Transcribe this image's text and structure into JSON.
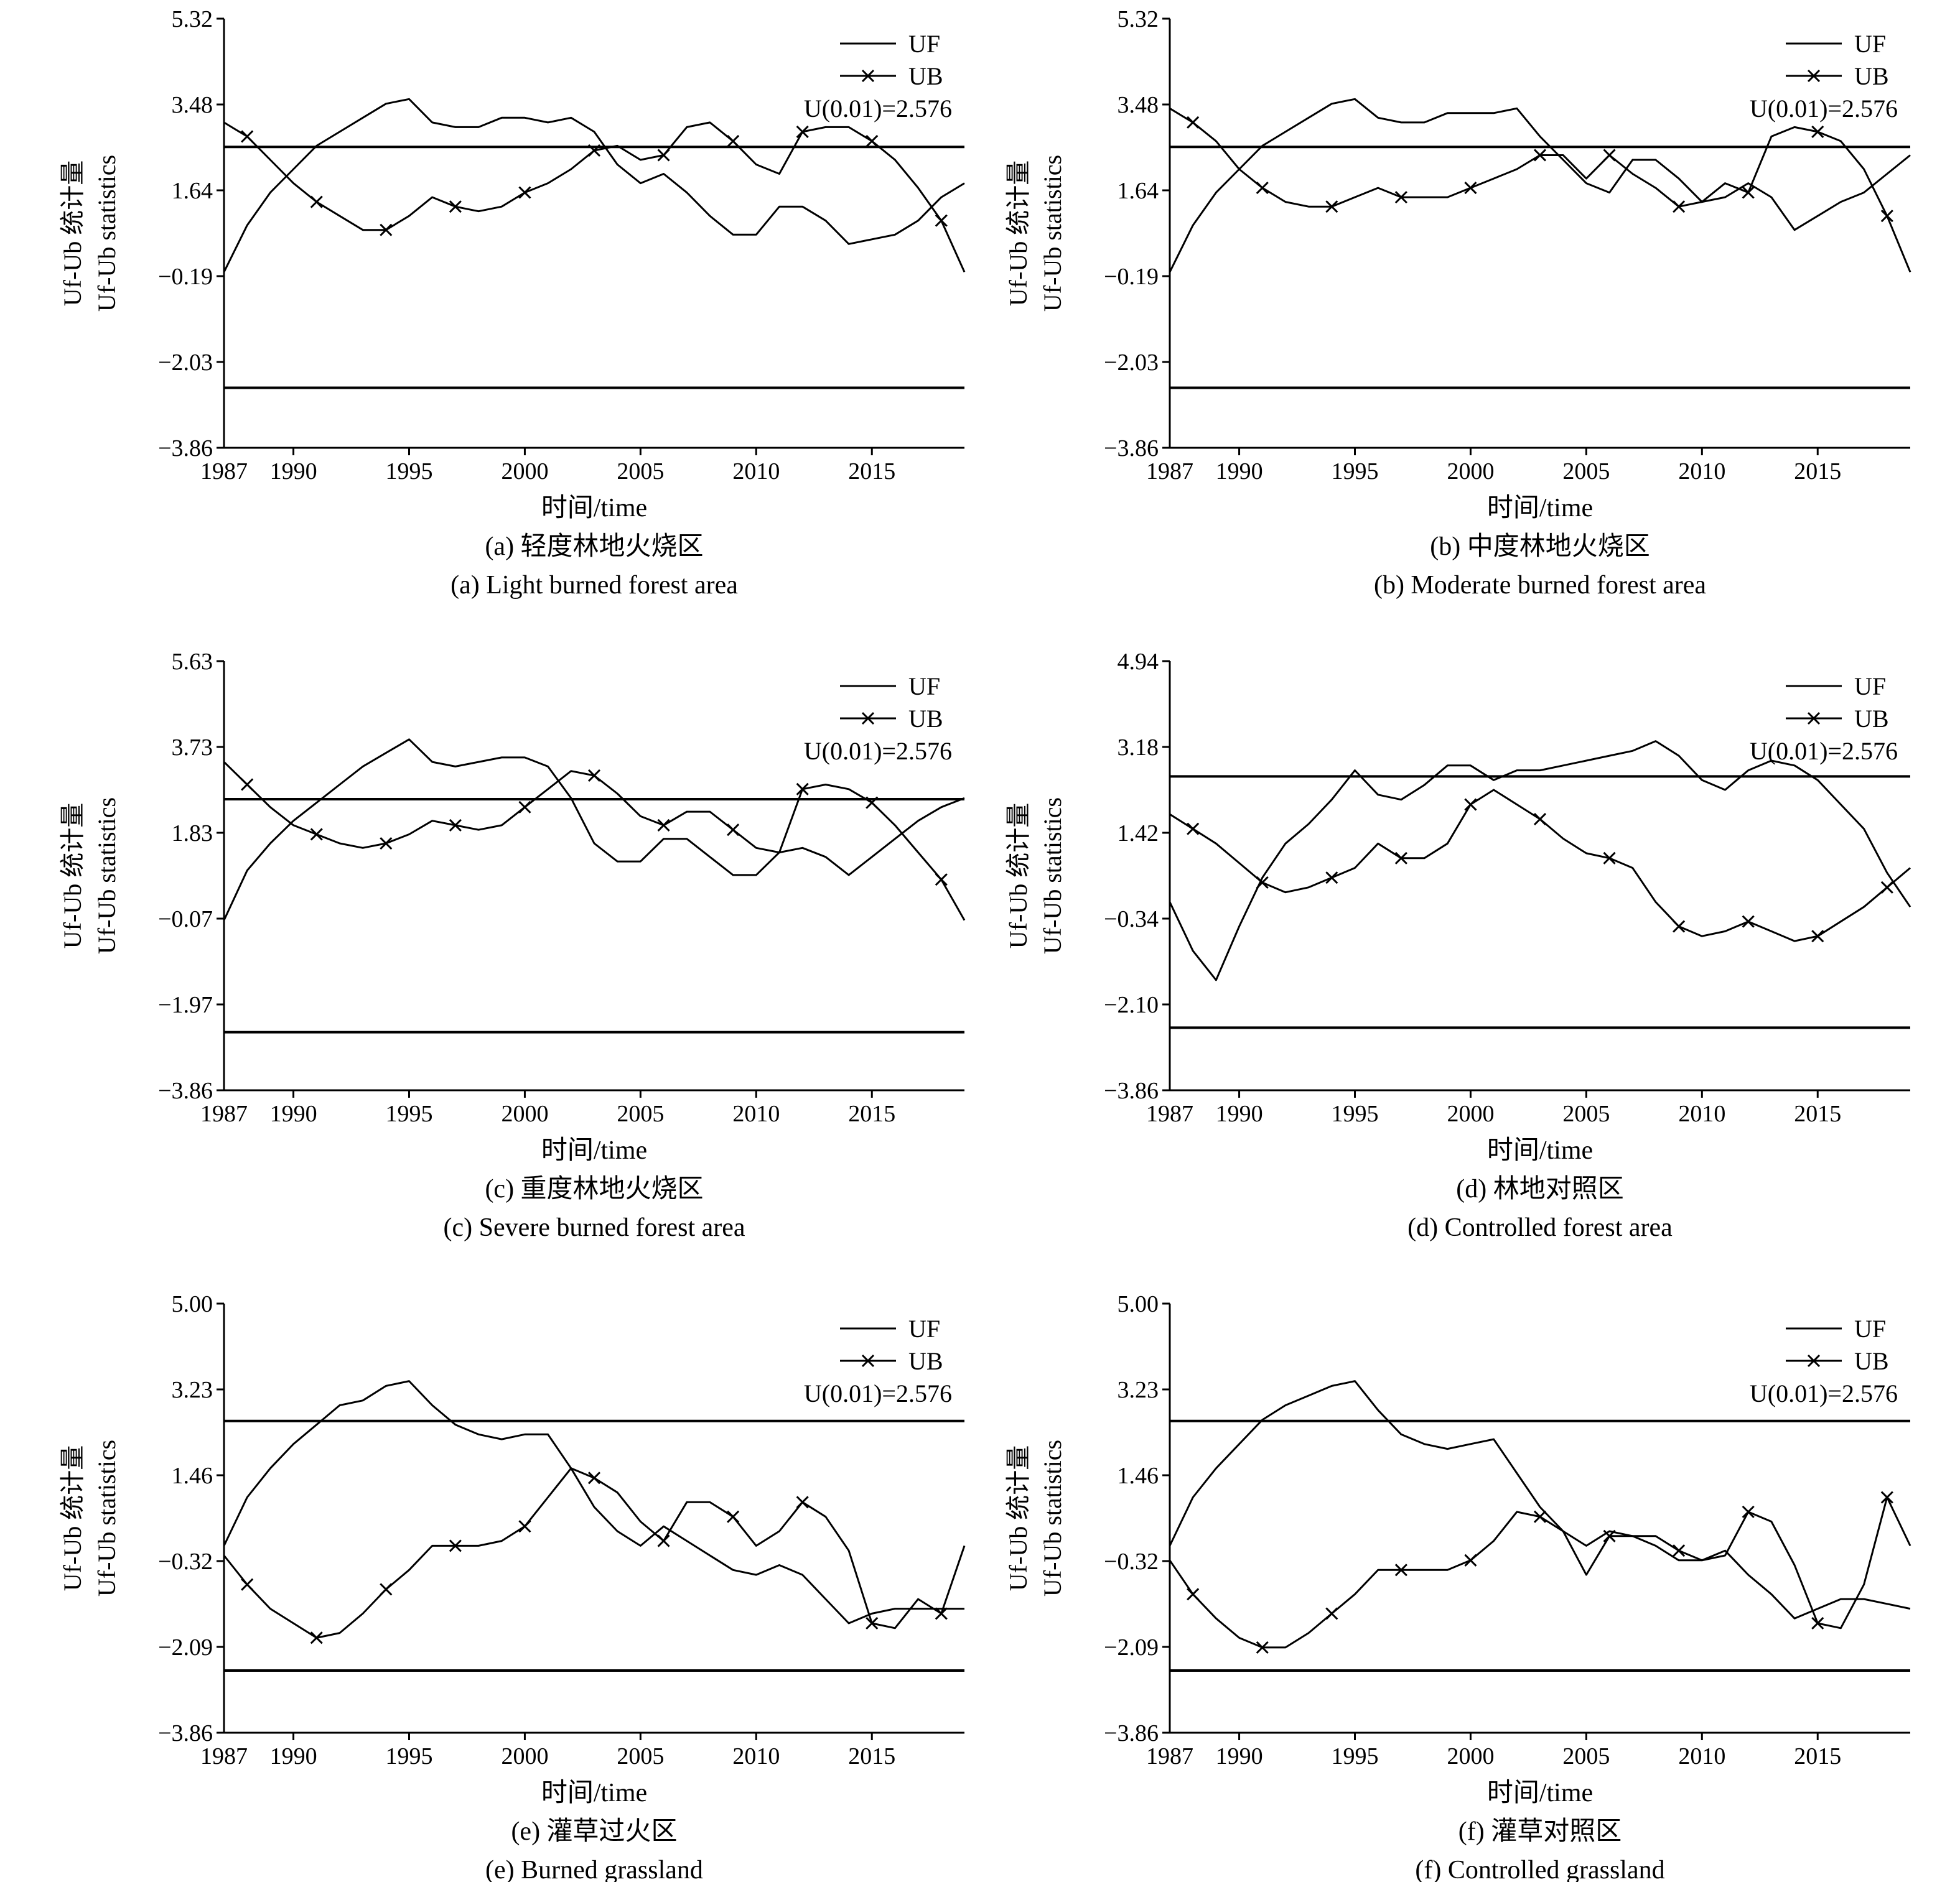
{
  "legend": {
    "uf": "UF",
    "ub": "UB",
    "threshold": "U(0.01)=2.576"
  },
  "axis_labels": {
    "x": "时间/time",
    "y_cn": "Uf-Ub 统计量",
    "y_en": "Uf-Ub statistics"
  },
  "chart_data": [
    {
      "type": "line",
      "caption_cn": "(a) 轻度林地火烧区",
      "caption_en": "(a) Light burned forest area",
      "xlim": [
        1987,
        2019
      ],
      "ylim": [
        -3.86,
        5.32
      ],
      "x_ticks": [
        1987,
        1990,
        1995,
        2000,
        2005,
        2010,
        2015
      ],
      "y_ticks": [
        "5.32",
        "3.48",
        "1.64",
        "-0.19",
        "-2.03",
        "-3.86"
      ],
      "thresholds": [
        2.576,
        -2.576
      ],
      "series": [
        {
          "name": "UF",
          "x": [
            1987,
            1988,
            1989,
            1990,
            1991,
            1992,
            1993,
            1994,
            1995,
            1996,
            1997,
            1998,
            1999,
            2000,
            2001,
            2002,
            2003,
            2004,
            2005,
            2006,
            2007,
            2008,
            2009,
            2010,
            2011,
            2012,
            2013,
            2014,
            2015,
            2016,
            2017,
            2018,
            2019
          ],
          "y": [
            -0.1,
            0.9,
            1.6,
            2.1,
            2.6,
            2.9,
            3.2,
            3.5,
            3.6,
            3.1,
            3.0,
            3.0,
            3.2,
            3.2,
            3.1,
            3.2,
            2.9,
            2.2,
            1.8,
            2.0,
            1.6,
            1.1,
            0.7,
            0.7,
            1.3,
            1.3,
            1.0,
            0.5,
            0.6,
            0.7,
            1.0,
            1.5,
            1.8
          ]
        },
        {
          "name": "UB",
          "x": [
            1987,
            1988,
            1989,
            1990,
            1991,
            1992,
            1993,
            1994,
            1995,
            1996,
            1997,
            1998,
            1999,
            2000,
            2001,
            2002,
            2003,
            2004,
            2005,
            2006,
            2007,
            2008,
            2009,
            2010,
            2011,
            2012,
            2013,
            2014,
            2015,
            2016,
            2017,
            2018,
            2019
          ],
          "y": [
            3.1,
            2.8,
            2.3,
            1.8,
            1.4,
            1.1,
            0.8,
            0.8,
            1.1,
            1.5,
            1.3,
            1.2,
            1.3,
            1.6,
            1.8,
            2.1,
            2.5,
            2.6,
            2.3,
            2.4,
            3.0,
            3.1,
            2.7,
            2.2,
            2.0,
            2.9,
            3.0,
            3.0,
            2.7,
            2.3,
            1.7,
            1.0,
            -0.1
          ]
        }
      ]
    },
    {
      "type": "line",
      "caption_cn": "(b) 中度林地火烧区",
      "caption_en": "(b) Moderate burned forest area",
      "xlim": [
        1987,
        2019
      ],
      "ylim": [
        -3.86,
        5.32
      ],
      "x_ticks": [
        1987,
        1990,
        1995,
        2000,
        2005,
        2010,
        2015
      ],
      "y_ticks": [
        "5.32",
        "3.48",
        "1.64",
        "-0.19",
        "-2.03",
        "-3.86"
      ],
      "thresholds": [
        2.576,
        -2.576
      ],
      "series": [
        {
          "name": "UF",
          "x": [
            1987,
            1988,
            1989,
            1990,
            1991,
            1992,
            1993,
            1994,
            1995,
            1996,
            1997,
            1998,
            1999,
            2000,
            2001,
            2002,
            2003,
            2004,
            2005,
            2006,
            2007,
            2008,
            2009,
            2010,
            2011,
            2012,
            2013,
            2014,
            2015,
            2016,
            2017,
            2018,
            2019
          ],
          "y": [
            -0.1,
            0.9,
            1.6,
            2.1,
            2.6,
            2.9,
            3.2,
            3.5,
            3.6,
            3.2,
            3.1,
            3.1,
            3.3,
            3.3,
            3.3,
            3.4,
            2.8,
            2.3,
            1.8,
            1.6,
            2.3,
            2.3,
            1.9,
            1.4,
            1.5,
            1.8,
            1.5,
            0.8,
            1.1,
            1.4,
            1.6,
            2.0,
            2.4
          ]
        },
        {
          "name": "UB",
          "x": [
            1987,
            1988,
            1989,
            1990,
            1991,
            1992,
            1993,
            1994,
            1995,
            1996,
            1997,
            1998,
            1999,
            2000,
            2001,
            2002,
            2003,
            2004,
            2005,
            2006,
            2007,
            2008,
            2009,
            2010,
            2011,
            2012,
            2013,
            2014,
            2015,
            2016,
            2017,
            2018,
            2019
          ],
          "y": [
            3.4,
            3.1,
            2.7,
            2.1,
            1.7,
            1.4,
            1.3,
            1.3,
            1.5,
            1.7,
            1.5,
            1.5,
            1.5,
            1.7,
            1.9,
            2.1,
            2.4,
            2.4,
            1.9,
            2.4,
            2.0,
            1.7,
            1.3,
            1.4,
            1.8,
            1.6,
            2.8,
            3.0,
            2.9,
            2.7,
            2.1,
            1.1,
            -0.1
          ]
        }
      ]
    },
    {
      "type": "line",
      "caption_cn": "(c) 重度林地火烧区",
      "caption_en": "(c) Severe burned forest area",
      "xlim": [
        1987,
        2019
      ],
      "ylim": [
        -3.86,
        5.63
      ],
      "x_ticks": [
        1987,
        1990,
        1995,
        2000,
        2005,
        2010,
        2015
      ],
      "y_ticks": [
        "5.63",
        "3.73",
        "1.83",
        "-0.07",
        "-1.97",
        "-3.86"
      ],
      "thresholds": [
        2.576,
        -2.576
      ],
      "series": [
        {
          "name": "UF",
          "x": [
            1987,
            1988,
            1989,
            1990,
            1991,
            1992,
            1993,
            1994,
            1995,
            1996,
            1997,
            1998,
            1999,
            2000,
            2001,
            2002,
            2003,
            2004,
            2005,
            2006,
            2007,
            2008,
            2009,
            2010,
            2011,
            2012,
            2013,
            2014,
            2015,
            2016,
            2017,
            2018,
            2019
          ],
          "y": [
            -0.1,
            1.0,
            1.6,
            2.1,
            2.5,
            2.9,
            3.3,
            3.6,
            3.9,
            3.4,
            3.3,
            3.4,
            3.5,
            3.5,
            3.3,
            2.6,
            1.6,
            1.2,
            1.2,
            1.7,
            1.7,
            1.3,
            0.9,
            0.9,
            1.4,
            1.5,
            1.3,
            0.9,
            1.3,
            1.7,
            2.1,
            2.4,
            2.6
          ]
        },
        {
          "name": "UB",
          "x": [
            1987,
            1988,
            1989,
            1990,
            1991,
            1992,
            1993,
            1994,
            1995,
            1996,
            1997,
            1998,
            1999,
            2000,
            2001,
            2002,
            2003,
            2004,
            2005,
            2006,
            2007,
            2008,
            2009,
            2010,
            2011,
            2012,
            2013,
            2014,
            2015,
            2016,
            2017,
            2018,
            2019
          ],
          "y": [
            3.4,
            2.9,
            2.4,
            2.0,
            1.8,
            1.6,
            1.5,
            1.6,
            1.8,
            2.1,
            2.0,
            1.9,
            2.0,
            2.4,
            2.8,
            3.2,
            3.1,
            2.7,
            2.2,
            2.0,
            2.3,
            2.3,
            1.9,
            1.5,
            1.4,
            2.8,
            2.9,
            2.8,
            2.5,
            2.0,
            1.4,
            0.8,
            -0.1
          ]
        }
      ]
    },
    {
      "type": "line",
      "caption_cn": "(d) 林地对照区",
      "caption_en": "(d) Controlled forest area",
      "xlim": [
        1987,
        2019
      ],
      "ylim": [
        -3.86,
        4.94
      ],
      "x_ticks": [
        1987,
        1990,
        1995,
        2000,
        2005,
        2010,
        2015
      ],
      "y_ticks": [
        "4.94",
        "3.18",
        "1.42",
        "-0.34",
        "-2.10",
        "-3.86"
      ],
      "thresholds": [
        2.576,
        -2.576
      ],
      "series": [
        {
          "name": "UF",
          "x": [
            1987,
            1988,
            1989,
            1990,
            1991,
            1992,
            1993,
            1994,
            1995,
            1996,
            1997,
            1998,
            1999,
            2000,
            2001,
            2002,
            2003,
            2004,
            2005,
            2006,
            2007,
            2008,
            2009,
            2010,
            2011,
            2012,
            2013,
            2014,
            2015,
            2016,
            2017,
            2018,
            2019
          ],
          "y": [
            0.0,
            -1.0,
            -1.6,
            -0.5,
            0.5,
            1.2,
            1.6,
            2.1,
            2.7,
            2.2,
            2.1,
            2.4,
            2.8,
            2.8,
            2.5,
            2.7,
            2.7,
            2.8,
            2.9,
            3.0,
            3.1,
            3.3,
            3.0,
            2.5,
            2.3,
            2.7,
            2.9,
            2.8,
            2.5,
            2.0,
            1.5,
            0.6,
            -0.1
          ]
        },
        {
          "name": "UB",
          "x": [
            1987,
            1988,
            1989,
            1990,
            1991,
            1992,
            1993,
            1994,
            1995,
            1996,
            1997,
            1998,
            1999,
            2000,
            2001,
            2002,
            2003,
            2004,
            2005,
            2006,
            2007,
            2008,
            2009,
            2010,
            2011,
            2012,
            2013,
            2014,
            2015,
            2016,
            2017,
            2018,
            2019
          ],
          "y": [
            1.8,
            1.5,
            1.2,
            0.8,
            0.4,
            0.2,
            0.3,
            0.5,
            0.7,
            1.2,
            0.9,
            0.9,
            1.2,
            2.0,
            2.3,
            2.0,
            1.7,
            1.3,
            1.0,
            0.9,
            0.7,
            0.0,
            -0.5,
            -0.7,
            -0.6,
            -0.4,
            -0.6,
            -0.8,
            -0.7,
            -0.4,
            -0.1,
            0.3,
            0.7
          ]
        }
      ]
    },
    {
      "type": "line",
      "caption_cn": "(e) 灌草过火区",
      "caption_en": "(e) Burned grassland",
      "xlim": [
        1987,
        2019
      ],
      "ylim": [
        -3.86,
        5.0
      ],
      "x_ticks": [
        1987,
        1990,
        1995,
        2000,
        2005,
        2010,
        2015
      ],
      "y_ticks": [
        "5.00",
        "3.23",
        "1.46",
        "-0.32",
        "-2.09",
        "-3.86"
      ],
      "thresholds": [
        2.576,
        -2.576
      ],
      "series": [
        {
          "name": "UF",
          "x": [
            1987,
            1988,
            1989,
            1990,
            1991,
            1992,
            1993,
            1994,
            1995,
            1996,
            1997,
            1998,
            1999,
            2000,
            2001,
            2002,
            2003,
            2004,
            2005,
            2006,
            2007,
            2008,
            2009,
            2010,
            2011,
            2012,
            2013,
            2014,
            2015,
            2016,
            2017,
            2018,
            2019
          ],
          "y": [
            0.0,
            1.0,
            1.6,
            2.1,
            2.5,
            2.9,
            3.0,
            3.3,
            3.4,
            2.9,
            2.5,
            2.3,
            2.2,
            2.3,
            2.3,
            1.6,
            0.8,
            0.3,
            0.0,
            0.4,
            0.1,
            -0.2,
            -0.5,
            -0.6,
            -0.4,
            -0.6,
            -1.1,
            -1.6,
            -1.4,
            -1.3,
            -1.3,
            -1.3,
            -1.3
          ]
        },
        {
          "name": "UB",
          "x": [
            1987,
            1988,
            1989,
            1990,
            1991,
            1992,
            1993,
            1994,
            1995,
            1996,
            1997,
            1998,
            1999,
            2000,
            2001,
            2002,
            2003,
            2004,
            2005,
            2006,
            2007,
            2008,
            2009,
            2010,
            2011,
            2012,
            2013,
            2014,
            2015,
            2016,
            2017,
            2018,
            2019
          ],
          "y": [
            -0.2,
            -0.8,
            -1.3,
            -1.6,
            -1.9,
            -1.8,
            -1.4,
            -0.9,
            -0.5,
            0.0,
            0.0,
            0.0,
            0.1,
            0.4,
            1.0,
            1.6,
            1.4,
            1.1,
            0.5,
            0.1,
            0.9,
            0.9,
            0.6,
            0.0,
            0.3,
            0.9,
            0.6,
            -0.1,
            -1.6,
            -1.7,
            -1.1,
            -1.4,
            0.0
          ]
        }
      ]
    },
    {
      "type": "line",
      "caption_cn": "(f) 灌草对照区",
      "caption_en": "(f) Controlled grassland",
      "xlim": [
        1987,
        2019
      ],
      "ylim": [
        -3.86,
        5.0
      ],
      "x_ticks": [
        1987,
        1990,
        1995,
        2000,
        2005,
        2010,
        2015
      ],
      "y_ticks": [
        "5.00",
        "3.23",
        "1.46",
        "-0.32",
        "-2.09",
        "-3.86"
      ],
      "thresholds": [
        2.576,
        -2.576
      ],
      "series": [
        {
          "name": "UF",
          "x": [
            1987,
            1988,
            1989,
            1990,
            1991,
            1992,
            1993,
            1994,
            1995,
            1996,
            1997,
            1998,
            1999,
            2000,
            2001,
            2002,
            2003,
            2004,
            2005,
            2006,
            2007,
            2008,
            2009,
            2010,
            2011,
            2012,
            2013,
            2014,
            2015,
            2016,
            2017,
            2018,
            2019
          ],
          "y": [
            0.0,
            1.0,
            1.6,
            2.1,
            2.6,
            2.9,
            3.1,
            3.3,
            3.4,
            2.8,
            2.3,
            2.1,
            2.0,
            2.1,
            2.2,
            1.5,
            0.8,
            0.3,
            0.0,
            0.3,
            0.2,
            0.0,
            -0.3,
            -0.3,
            -0.1,
            -0.6,
            -1.0,
            -1.5,
            -1.3,
            -1.1,
            -1.1,
            -1.2,
            -1.3
          ]
        },
        {
          "name": "UB",
          "x": [
            1987,
            1988,
            1989,
            1990,
            1991,
            1992,
            1993,
            1994,
            1995,
            1996,
            1997,
            1998,
            1999,
            2000,
            2001,
            2002,
            2003,
            2004,
            2005,
            2006,
            2007,
            2008,
            2009,
            2010,
            2011,
            2012,
            2013,
            2014,
            2015,
            2016,
            2017,
            2018,
            2019
          ],
          "y": [
            -0.3,
            -1.0,
            -1.5,
            -1.9,
            -2.1,
            -2.1,
            -1.8,
            -1.4,
            -1.0,
            -0.5,
            -0.5,
            -0.5,
            -0.5,
            -0.3,
            0.1,
            0.7,
            0.6,
            0.3,
            -0.6,
            0.2,
            0.2,
            0.2,
            -0.1,
            -0.3,
            -0.2,
            0.7,
            0.5,
            -0.4,
            -1.6,
            -1.7,
            -0.8,
            1.0,
            0.0
          ]
        }
      ]
    }
  ]
}
